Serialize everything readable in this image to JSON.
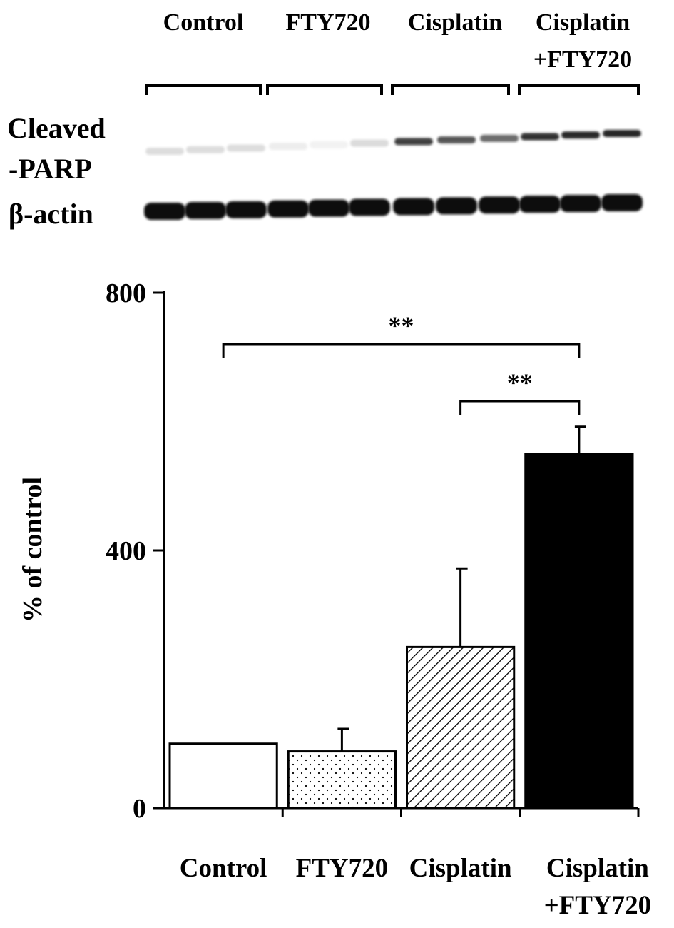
{
  "blot": {
    "lane_groups": [
      {
        "line1": "Control",
        "line2": ""
      },
      {
        "line1": "FTY720",
        "line2": ""
      },
      {
        "line1": "Cisplatin",
        "line2": ""
      },
      {
        "line1": "Cisplatin",
        "line2": "+FTY720"
      }
    ],
    "rows": [
      {
        "line1": "Cleaved",
        "line2": "-PARP"
      },
      {
        "line1": "β-actin",
        "line2": ""
      }
    ],
    "cleaved_parp_intensity": [
      0.15,
      0.15,
      0.15,
      0.08,
      0.06,
      0.16,
      0.85,
      0.75,
      0.65,
      0.92,
      0.95,
      0.97
    ]
  },
  "chart_data": {
    "type": "bar",
    "ylabel": "% of control",
    "ylim": [
      0,
      800
    ],
    "yticks": [
      0,
      400,
      800
    ],
    "categories": [
      {
        "line1": "Control",
        "line2": ""
      },
      {
        "line1": "FTY720",
        "line2": ""
      },
      {
        "line1": "Cisplatin",
        "line2": ""
      },
      {
        "line1": "Cisplatin",
        "line2": "+FTY720"
      }
    ],
    "values": [
      100,
      88,
      250,
      550
    ],
    "errors": [
      0,
      35,
      122,
      42
    ],
    "fills": [
      "white",
      "dots",
      "hatch",
      "black"
    ],
    "significance": [
      {
        "from": 0,
        "to": 3,
        "label": "**"
      },
      {
        "from": 2,
        "to": 3,
        "label": "**"
      }
    ]
  }
}
